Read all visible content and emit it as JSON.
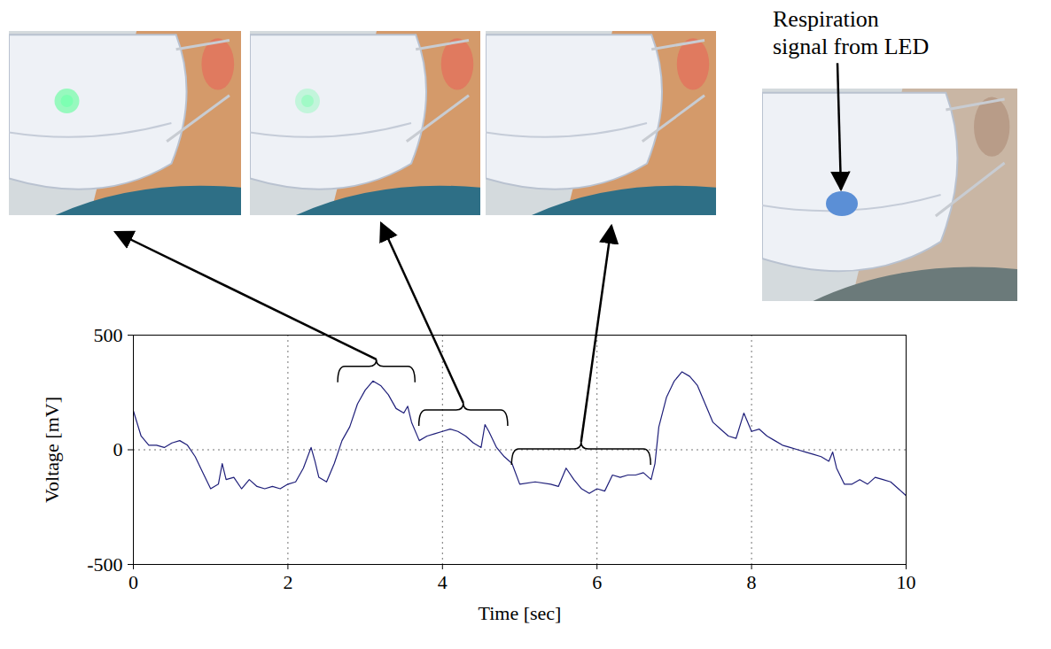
{
  "chart_data": {
    "type": "line",
    "x_label": "Time [sec]",
    "y_label": "Voltage [mV]",
    "annotation": "Respiration signal from LED",
    "xlim": [
      0,
      10
    ],
    "xticks": [
      0,
      2,
      4,
      6,
      8,
      10
    ],
    "ylim": [
      -500,
      500
    ],
    "yticks": [
      -500,
      0,
      500
    ],
    "grid": true,
    "color": "#1f1f7a",
    "brackets": [
      [
        2.65,
        3.65
      ],
      [
        3.7,
        4.85
      ],
      [
        4.9,
        6.7
      ]
    ],
    "x": [
      0,
      0.1,
      0.2,
      0.3,
      0.4,
      0.5,
      0.6,
      0.7,
      0.8,
      0.9,
      1.0,
      1.1,
      1.15,
      1.2,
      1.3,
      1.4,
      1.5,
      1.6,
      1.7,
      1.8,
      1.9,
      2.0,
      2.1,
      2.2,
      2.3,
      2.35,
      2.4,
      2.5,
      2.6,
      2.7,
      2.8,
      2.9,
      3.0,
      3.1,
      3.2,
      3.3,
      3.4,
      3.5,
      3.55,
      3.6,
      3.7,
      3.8,
      3.9,
      4.0,
      4.1,
      4.2,
      4.3,
      4.4,
      4.5,
      4.55,
      4.6,
      4.7,
      4.8,
      4.9,
      5.0,
      5.2,
      5.4,
      5.5,
      5.6,
      5.7,
      5.8,
      5.9,
      6.0,
      6.1,
      6.2,
      6.3,
      6.4,
      6.5,
      6.6,
      6.7,
      6.75,
      6.8,
      6.9,
      7.0,
      7.1,
      7.2,
      7.3,
      7.4,
      7.5,
      7.6,
      7.7,
      7.8,
      7.9,
      8.0,
      8.1,
      8.2,
      8.3,
      8.4,
      8.5,
      8.6,
      8.7,
      8.8,
      8.9,
      9.0,
      9.05,
      9.1,
      9.2,
      9.3,
      9.4,
      9.5,
      9.6,
      9.7,
      9.8,
      9.9,
      10.0
    ],
    "values": [
      170,
      60,
      20,
      20,
      10,
      30,
      40,
      20,
      -30,
      -100,
      -170,
      -150,
      -60,
      -130,
      -120,
      -170,
      -130,
      -160,
      -170,
      -160,
      -170,
      -150,
      -140,
      -80,
      10,
      -50,
      -120,
      -140,
      -60,
      40,
      100,
      200,
      260,
      300,
      280,
      240,
      180,
      160,
      190,
      120,
      40,
      60,
      70,
      80,
      90,
      80,
      60,
      30,
      10,
      110,
      80,
      10,
      -30,
      -60,
      -150,
      -140,
      -150,
      -160,
      -80,
      -130,
      -170,
      -190,
      -170,
      -180,
      -110,
      -120,
      -110,
      -110,
      -100,
      -130,
      -60,
      100,
      230,
      300,
      340,
      320,
      280,
      200,
      120,
      90,
      60,
      50,
      160,
      80,
      90,
      60,
      40,
      20,
      10,
      0,
      -10,
      -20,
      -30,
      -50,
      -10,
      -80,
      -150,
      -150,
      -130,
      -150,
      -120,
      -130,
      -140,
      -170,
      -200
    ]
  }
}
